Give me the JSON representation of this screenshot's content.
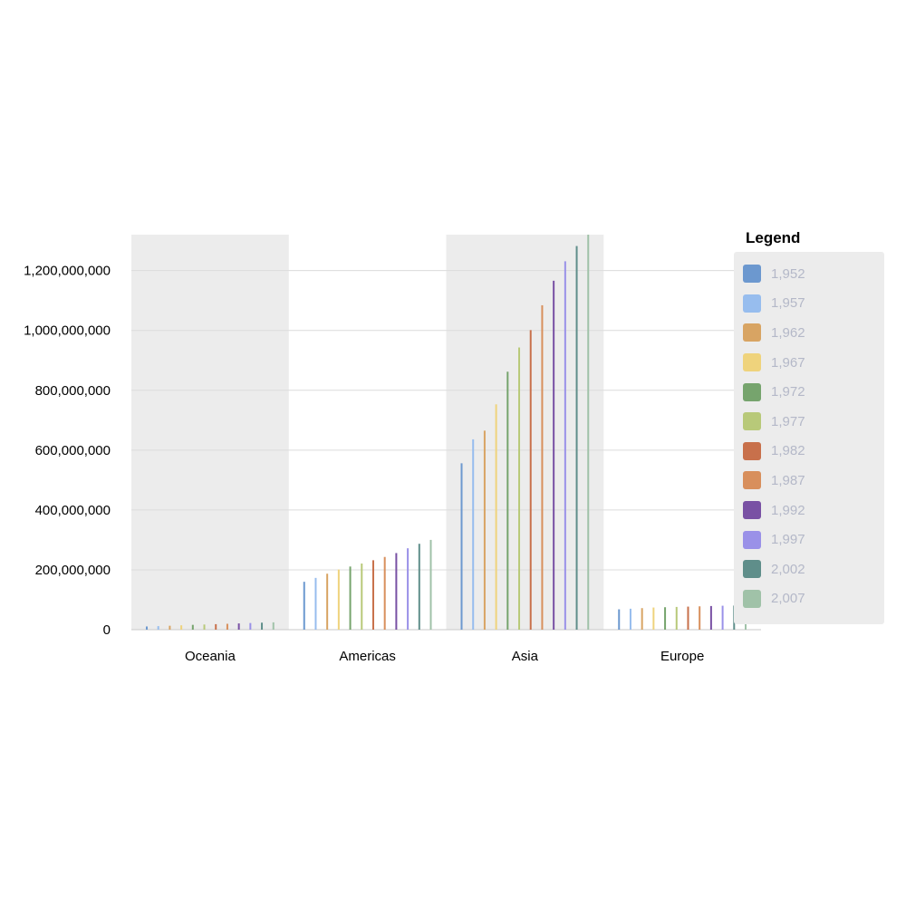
{
  "chart_data": {
    "type": "bar",
    "categories": [
      "Oceania",
      "Americas",
      "Asia",
      "Europe"
    ],
    "y_ticks": [
      "0",
      "200,000,000",
      "400,000,000",
      "600,000,000",
      "800,000,000",
      "1,000,000,000",
      "1,200,000,000"
    ],
    "y_tick_values": [
      0,
      200000000,
      400000000,
      600000000,
      800000000,
      1000000000,
      1200000000
    ],
    "ylim": [
      0,
      1320000000
    ],
    "grid": true,
    "legend_title": "Legend",
    "legend_position": "right",
    "series": [
      {
        "name": "1,952",
        "color": "#6c98cf",
        "values": [
          10700000,
          160000000,
          556000000,
          68000000
        ]
      },
      {
        "name": "1,957",
        "color": "#97bdee",
        "values": [
          11900000,
          173000000,
          636000000,
          70000000
        ]
      },
      {
        "name": "1,962",
        "color": "#d8a463",
        "values": [
          13100000,
          187000000,
          665000000,
          72000000
        ]
      },
      {
        "name": "1,967",
        "color": "#efd37c",
        "values": [
          14600000,
          201000000,
          753000000,
          74000000
        ]
      },
      {
        "name": "1,972",
        "color": "#76a46d",
        "values": [
          16100000,
          211000000,
          862000000,
          75000000
        ]
      },
      {
        "name": "1,977",
        "color": "#b8c979",
        "values": [
          17200000,
          221000000,
          943000000,
          76000000
        ]
      },
      {
        "name": "1,982",
        "color": "#c8704b",
        "values": [
          18400000,
          232000000,
          1001000000,
          77000000
        ]
      },
      {
        "name": "1,987",
        "color": "#d88f5c",
        "values": [
          19600000,
          243000000,
          1084000000,
          78000000
        ]
      },
      {
        "name": "1,992",
        "color": "#7951a4",
        "values": [
          20900000,
          256000000,
          1166000000,
          79000000
        ]
      },
      {
        "name": "1,997",
        "color": "#9a91e8",
        "values": [
          22200000,
          272000000,
          1231000000,
          80000000
        ]
      },
      {
        "name": "2,002",
        "color": "#5f8e8a",
        "values": [
          23400000,
          287000000,
          1282000000,
          80500000
        ]
      },
      {
        "name": "2,007",
        "color": "#a0c2a8",
        "values": [
          24500000,
          300000000,
          1320000000,
          81000000
        ]
      }
    ]
  }
}
